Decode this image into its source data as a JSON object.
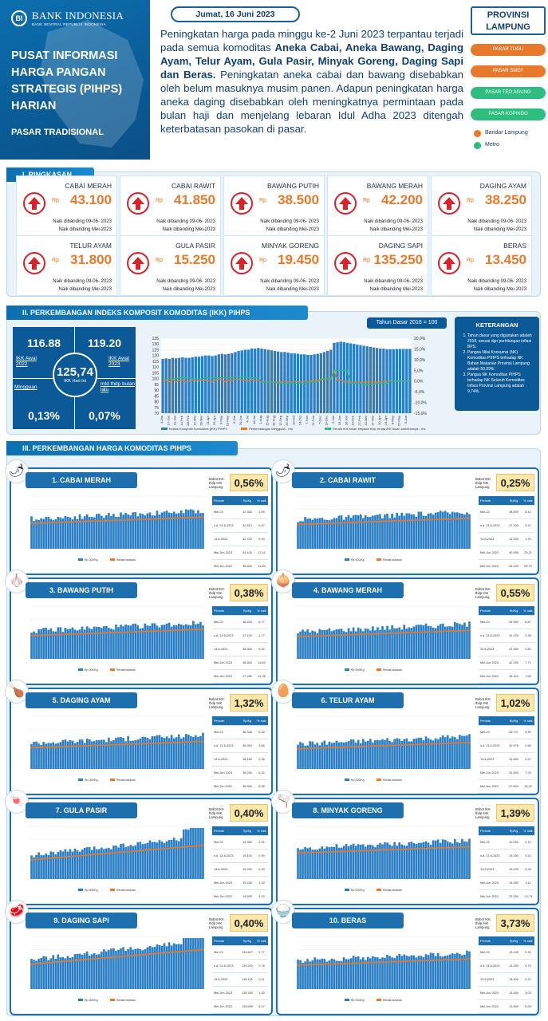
{
  "header": {
    "bank_name": "BANK INDONESIA",
    "bank_sub": "BANK SENTRAL REPUBLIK INDONESIA",
    "title": "PUSAT INFORMASI HARGA PANGAN STRATEGIS (PIHPS) HARIAN",
    "subtitle": "PASAR TRADISIONAL",
    "date": "Jumat, 16 Juni 2023",
    "para_1": "Peningkatan harga pada minggu ke-2 Juni 2023 terpantau terjadi pada semua komoditas ",
    "para_bold": "Aneka Cabai, Aneka Bawang, Daging Ayam, Telur Ayam, Gula Pasir, Minyak Goreng, Daging Sapi dan Beras.",
    "para_2": " Peningkatan aneka cabai dan bawang disebabkan oleh belum masuknya musim panen. Adapun peningkatan harga aneka daging disebabkan oleh meningkatnya permintaan pada bulan haji dan menjelang lebaran Idul Adha 2023 ditengah keterbatasan pasokan di pasar.",
    "province": "PROVINSI LAMPUNG",
    "markets": [
      {
        "label": "PASAR TUGU",
        "color": "#e8792b"
      },
      {
        "label": "PASAR SMEP",
        "color": "#e8792b"
      },
      {
        "label": "PASAR TEO AGUNG",
        "color": "#2dbd7e"
      },
      {
        "label": "PASAR KOPINDO",
        "color": "#2dbd7e"
      }
    ],
    "legend": [
      {
        "label": "Bandar Lampung",
        "color": "#e8792b"
      },
      {
        "label": "Metro",
        "color": "#2dbd7e"
      }
    ]
  },
  "sections": {
    "s1": "I. RINGKASAN",
    "s2": "II. PERKEMBANGAN INDEKS KOMPOSIT KOMODITAS (IKK) PIHPS",
    "s3": "III. PERKEMBANGAN HARGA KOMODITAS PIHPS"
  },
  "summary": {
    "rp": "Rp",
    "note1": "Naik dibanding 09-06- 2023",
    "note2": "Naik dibanding Mei-2023",
    "items": [
      {
        "name": "CABAI MERAH",
        "price": "43.100"
      },
      {
        "name": "CABAI RAWIT",
        "price": "41.850"
      },
      {
        "name": "BAWANG PUTIH",
        "price": "38.500"
      },
      {
        "name": "BAWANG MERAH",
        "price": "42.200"
      },
      {
        "name": "DAGING AYAM",
        "price": "38.250"
      },
      {
        "name": "TELUR AYAM",
        "price": "31.800"
      },
      {
        "name": "GULA PASIR",
        "price": "15.250"
      },
      {
        "name": "MINYAK GORENG",
        "price": "19.450"
      },
      {
        "name": "DAGING SAPI",
        "price": "135.250"
      },
      {
        "name": "BERAS",
        "price": "13.450"
      }
    ]
  },
  "ikk": {
    "awal_2022": "116.88",
    "awal_2022_lbl": "IKK Awal 2022",
    "awal_2023": "119.20",
    "awal_2023_lbl": "IKK Awal 2023",
    "hari_ini": "125,74",
    "hari_ini_lbl": "IKK Hari Ini",
    "minggu_lbl": "Mingguan",
    "minggu_val": "0,13%",
    "mtd_lbl": "mtd thdp bulan lalu",
    "mtd_val": "0,07%",
    "tahun_dasar": "Tahun Dasar 2018 = 100",
    "ket_title": "KETERANGAN",
    "ket_items": [
      "Tahun dasar yang digunakan adalah 2018, sesuai dgn perhitungan inflasi BPS.",
      "Pangsa Nilai Konsumsi (NK) Komoditas PIHPS terhadap NK Bahan Makanan Provinsi Lampung adalah 50,09%.",
      "Pangsa NK Komoditas PIHPS terhadap NK Seluruh Komoditas Inflasi Provinsi Lampung adalah 9,74%."
    ],
    "legend": [
      "Indeks Komposit Komoditas (IKK) PIHPS",
      "Perkembangan Mingguan - rhs",
      "Rerata IKK bulan berjalan thdp rerata IKK bulan sebelumnya - rhs"
    ]
  },
  "chart_data": {
    "type": "bar",
    "title": "",
    "ylim": [
      70,
      135
    ],
    "ylim_right": [
      -15,
      20
    ],
    "y_ticks": [
      "135",
      "130",
      "125",
      "120",
      "115",
      "110",
      "105",
      "100",
      "95",
      "90",
      "85",
      "80",
      "75",
      "70"
    ],
    "y_ticks_right": [
      "20,0%",
      "15,0%",
      "10,0%",
      "5,0%",
      "0,0%",
      "-5,0%",
      "-10,0%",
      "-15,0%"
    ],
    "categories": [
      "3-Jan",
      "10-Jan",
      "17-Jan",
      "24-Jan",
      "31-Jan",
      "7-Feb",
      "14-Feb",
      "21-Feb",
      "28-Feb",
      "7-Mar",
      "14-Mar",
      "21-Mar",
      "28-Mar",
      "4-Apr",
      "11-Apr",
      "18-Apr",
      "25-Apr",
      "2-May",
      "9-May",
      "16-May",
      "23-May",
      "30-May",
      "6-Jun",
      "13-Jun",
      "20-Jun",
      "27-Jun",
      "4-Jul",
      "11-Jul",
      "18-Jul",
      "25-Jul",
      "1-Aug",
      "8-Aug",
      "15-Aug",
      "22-Aug",
      "29-Aug",
      "5-Sep",
      "12-Sep",
      "19-Sep",
      "26-Sep",
      "3-Oct",
      "10-Oct",
      "17-Oct",
      "24-Oct",
      "31-Oct",
      "7-Nov",
      "14-Nov",
      "21-Nov",
      "28-Nov",
      "5-Dec",
      "12-Dec",
      "19-Dec",
      "26-Dec",
      "2-Jan",
      "9-Jan",
      "16-Jan",
      "23-Jan",
      "30-Jan",
      "6-Feb",
      "13-Feb",
      "20-Feb",
      "27-Feb",
      "6-Mar",
      "13-Mar",
      "20-Mar",
      "27-Mar",
      "3-Apr",
      "10-Apr",
      "17-Apr",
      "24-Apr",
      "1-May",
      "8-May",
      "15-May",
      "22-May",
      "29-May",
      "5-Jun",
      "12-Jun"
    ],
    "series": [
      {
        "name": "Indeks Komposit Komoditas (IKK) PIHPS",
        "type": "bar",
        "color": "#2a7fc4",
        "values": [
          117,
          117.5,
          117,
          118,
          117.5,
          118,
          118.5,
          118,
          118,
          118.5,
          119,
          119,
          119.5,
          120,
          120,
          119.5,
          120,
          121,
          121.5,
          121,
          121.5,
          122,
          123,
          124,
          124.5,
          125,
          125,
          126,
          126,
          126.5,
          126,
          125.5,
          125,
          124.5,
          124,
          123.5,
          123,
          123,
          122.5,
          122,
          122,
          121.5,
          121,
          121,
          120.5,
          120.5,
          121,
          121.5,
          122,
          123,
          124,
          125,
          131,
          131.5,
          132,
          131.5,
          131,
          130.5,
          130,
          129.5,
          129,
          128.5,
          128,
          127.5,
          127,
          126.5,
          126,
          126,
          125.5,
          125.5,
          125.5,
          125.6,
          125.7,
          125.7,
          125.7,
          125.74
        ]
      },
      {
        "name": "Perkembangan Mingguan - rhs",
        "type": "line",
        "color": "#e8792b",
        "values": [
          0.2,
          0.4,
          -0.4,
          0.8,
          -0.4,
          0.4,
          0.4,
          -0.4,
          0,
          0.4,
          0.4,
          0,
          0.4,
          0.4,
          0,
          -0.4,
          0.4,
          0.8,
          0.4,
          -0.4,
          0.4,
          0.4,
          0.8,
          0.8,
          0.4,
          0.4,
          0,
          0.8,
          0,
          0.4,
          -0.4,
          -0.4,
          -0.4,
          -0.4,
          -0.4,
          -0.4,
          -0.4,
          0,
          -0.4,
          -0.4,
          0,
          -0.4,
          -0.4,
          0,
          -0.4,
          0,
          0.4,
          0.4,
          0.4,
          0.8,
          0.8,
          0.8,
          4.8,
          0.4,
          0.4,
          -0.4,
          -0.4,
          -0.4,
          -0.4,
          -0.4,
          -0.4,
          -0.4,
          -0.4,
          -0.4,
          -0.4,
          -0.4,
          -0.4,
          0,
          -0.4,
          0,
          0,
          0.1,
          0.1,
          0,
          0,
          0.13
        ]
      },
      {
        "name": "Rerata IKK bulan berjalan thdp rerata IKK bulan sebelumnya - rhs",
        "type": "line",
        "color": "#2dbd7e",
        "values": [
          1,
          1,
          1,
          1,
          1,
          1.5,
          1.5,
          1.5,
          1.5,
          1,
          1,
          1,
          1,
          1.5,
          1.5,
          1.5,
          1.5,
          1.5,
          1.5,
          1.5,
          1.5,
          1.5,
          2,
          2,
          2,
          2,
          1.5,
          1.5,
          1.5,
          1.5,
          -0.5,
          -0.5,
          -0.5,
          -0.5,
          -0.5,
          -1,
          -1,
          -1,
          -1,
          -1,
          -1,
          -1,
          -1,
          -1,
          -0.5,
          -0.5,
          -0.5,
          -0.5,
          1,
          1,
          1,
          1,
          5,
          5,
          5,
          5,
          5,
          -1,
          -1,
          -1,
          -1,
          -1.5,
          -1.5,
          -1.5,
          -1.5,
          -1,
          -1,
          -1,
          -1,
          0,
          0,
          0,
          0,
          0,
          0.07,
          0.07
        ]
      }
    ]
  },
  "commodities_common": {
    "bobot_lbl": "Bobot IKK thdp IHK Lampung",
    "table_head": [
      "Periode",
      "Rp/Kg",
      "% naik"
    ],
    "legend_bar": "Rp 000/Kg",
    "legend_line": "Rerata bulanan"
  },
  "commodities": [
    {
      "title": "1. CABAI MERAH",
      "icon": "🌶",
      "bobot": "0,56%",
      "rows": [
        [
          "Mei-23",
          "42.300",
          "1,89"
        ],
        [
          "s.d. 13-6-2023",
          "42.812",
          "0,67"
        ],
        [
          "13-6-2023",
          "42.700",
          "0,94"
        ],
        [
          "Mei-Jun 2023",
          "43.100",
          "17,41"
        ],
        [
          "Mei-Jun 2022",
          "38.600",
          "11,66"
        ]
      ]
    },
    {
      "title": "2. CABAI RAWIT",
      "icon": "🌶",
      "bobot": "0,25%",
      "rows": [
        [
          "Mei-23",
          "38.600",
          "8,42"
        ],
        [
          "s.d. 13-6-2023",
          "37.200",
          "9,20"
        ],
        [
          "13-6-2023",
          "41.300",
          "1,91"
        ],
        [
          "Mei-Jun 2022",
          "40.950",
          "20,21"
        ],
        [
          "Mei-Jun 2023",
          "26.200",
          "59,73"
        ]
      ]
    },
    {
      "title": "3. BAWANG PUTIH",
      "icon": "🧄",
      "bobot": "0,38%",
      "rows": [
        [
          "Mei-23",
          "36.400",
          "5,77"
        ],
        [
          "s.d. 13-6-2023",
          "37.100",
          "3,77"
        ],
        [
          "13-6-2023",
          "38.300",
          "0,52"
        ],
        [
          "Mei-Jun 2023",
          "38.500",
          "13,63"
        ],
        [
          "Mei-Jun 2022",
          "27.250",
          "41,28"
        ]
      ]
    },
    {
      "title": "4. BAWANG MERAH",
      "icon": "🧅",
      "bobot": "0,55%",
      "rows": [
        [
          "Mei-23",
          "39.560",
          "6,67"
        ],
        [
          "s.d. 13-6-2023",
          "41.220",
          "2,38"
        ],
        [
          "13-6-2023",
          "41.950",
          "0,60"
        ],
        [
          "Mei-Jun 2023",
          "42.200",
          "7,72"
        ],
        [
          "Mei-Jun 2022",
          "39.200",
          "7,65"
        ]
      ]
    },
    {
      "title": "5. DAGING AYAM",
      "icon": "🍗",
      "bobot": "1,32%",
      "rows": [
        [
          "Mei-23",
          "36.325",
          "5,30"
        ],
        [
          "s.d. 13-6-2023",
          "36.900",
          "3,66"
        ],
        [
          "13-6-2023",
          "38.150",
          "0,26"
        ],
        [
          "Mei-Jun 2023",
          "38.250",
          "6,32"
        ],
        [
          "Mei-Jun 2022",
          "35.900",
          "6,55"
        ]
      ]
    },
    {
      "title": "6. TELUR AYAM",
      "icon": "🥚",
      "bobot": "1,02%",
      "rows": [
        [
          "Mei-23",
          "29.747",
          "6,90"
        ],
        [
          "s.d. 13-6-2023",
          "30.976",
          "2,66"
        ],
        [
          "13-6-2023",
          "31.650",
          "0,47"
        ],
        [
          "Mei-Jun 2023",
          "31.800",
          "7,29"
        ],
        [
          "Mei-Jun 2022",
          "27.600",
          "15,22"
        ]
      ]
    },
    {
      "title": "7. GULA PASIR",
      "icon": "🍬",
      "bobot": "0,40%",
      "rows": [
        [
          "Mei-23",
          "14.950",
          "2,01"
        ],
        [
          "s.d. 13-6-2023",
          "15.100",
          "0,99"
        ],
        [
          "13-6-2023",
          "15.200",
          "0,33"
        ],
        [
          "Mei-Jun 2023",
          "15.250",
          "1,33"
        ],
        [
          "Mei-Jun 2022",
          "14.650",
          "4,10"
        ]
      ]
    },
    {
      "title": "8. MINYAK GORENG",
      "icon": "🫗",
      "bobot": "1,39%",
      "rows": [
        [
          "Mei-23",
          "19.050",
          "2,10"
        ],
        [
          "s.d. 13-6-2023",
          "19.350",
          "0,52"
        ],
        [
          "13-6-2023",
          "19.400",
          "0,26"
        ],
        [
          "Mei-Jun 2023",
          "19.450",
          "3,11"
        ],
        [
          "Mei-Jun 2022",
          "22.050",
          "-11,79"
        ]
      ]
    },
    {
      "title": "9. DAGING SAPI",
      "icon": "🥩",
      "bobot": "0,40%",
      "rows": [
        [
          "Mei-23",
          "131.607",
          "2,77"
        ],
        [
          "s.d. 13-6-2023",
          "134.200",
          "0,78"
        ],
        [
          "13-6-2023",
          "135.100",
          "0,11"
        ],
        [
          "Mei-Jun 2023",
          "135.250",
          "1,60"
        ],
        [
          "Mei-Jun 2022",
          "128.600",
          "5,17"
        ]
      ]
    },
    {
      "title": "10. BERAS",
      "icon": "🍚",
      "bobot": "3,73%",
      "rows": [
        [
          "Mei-23",
          "13.145",
          "2,32"
        ],
        [
          "s.d. 13-6-2023",
          "13.350",
          "0,75"
        ],
        [
          "13-6-2023",
          "13.400",
          "0,37"
        ],
        [
          "Mei-Jun 2023",
          "13.450",
          "4,03"
        ],
        [
          "Mei-Jun 2022",
          "12.800",
          "5,08"
        ]
      ]
    }
  ]
}
